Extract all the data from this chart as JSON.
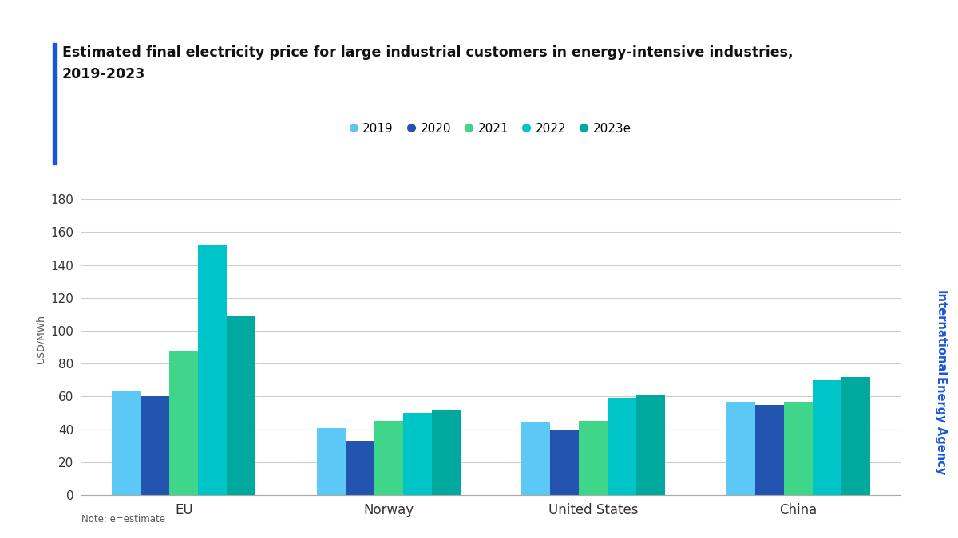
{
  "title_line1": "Estimated final electricity price for large industrial customers in energy-intensive industries,",
  "title_line2": "2019-2023",
  "ylabel": "USD/MWh",
  "categories": [
    "EU",
    "Norway",
    "United States",
    "China"
  ],
  "years": [
    "2019",
    "2020",
    "2021",
    "2022",
    "2023e"
  ],
  "colors": [
    "#5BC8F5",
    "#2355B0",
    "#3FD68A",
    "#00C5C8",
    "#00A99D"
  ],
  "data": {
    "EU": [
      63,
      60,
      88,
      152,
      109
    ],
    "Norway": [
      41,
      33,
      45,
      50,
      52
    ],
    "United States": [
      44,
      40,
      45,
      59,
      61
    ],
    "China": [
      57,
      55,
      57,
      70,
      72
    ]
  },
  "ylim": [
    0,
    190
  ],
  "yticks": [
    0,
    20,
    40,
    60,
    80,
    100,
    120,
    140,
    160,
    180
  ],
  "note": "Note: e=estimate",
  "watermark_line1": "International",
  "watermark_line2": "Energy Agency",
  "watermark_color": "#1A56DB",
  "background_color": "#FFFFFF",
  "grid_color": "#CCCCCC",
  "bar_width": 0.14,
  "accent_color": "#1A56DB"
}
